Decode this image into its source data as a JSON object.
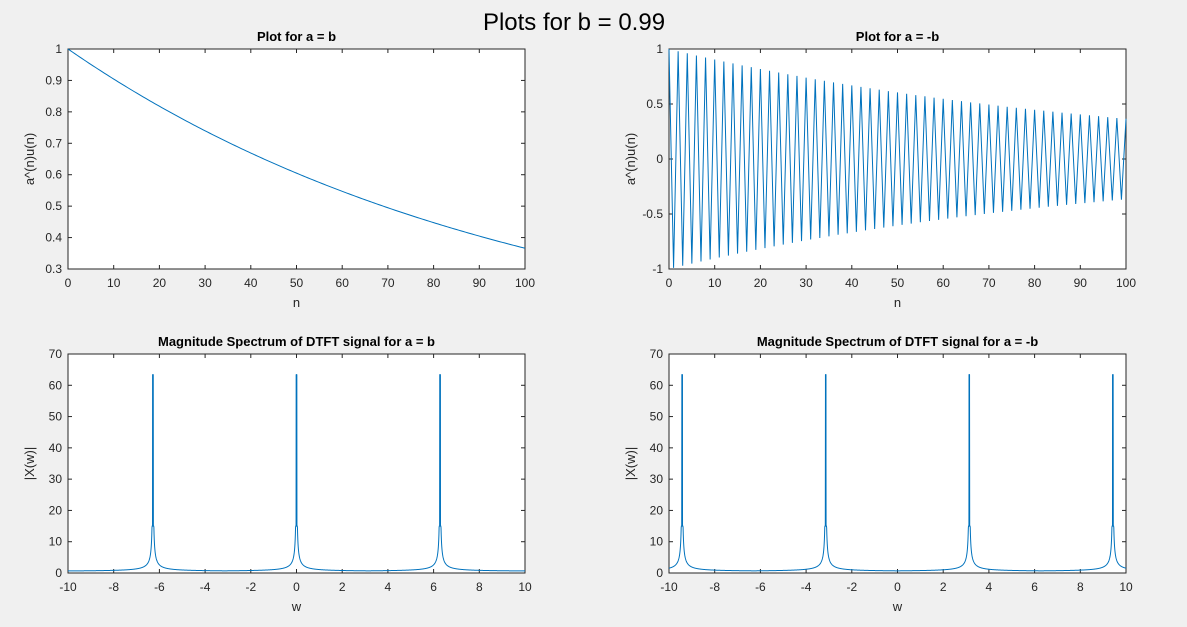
{
  "figure": {
    "suptitle": "Plots for b = 0.99"
  },
  "colors": {
    "line": "#0072BD",
    "axes_bg": "#ffffff",
    "figure_bg": "#f0f0f0",
    "axis": "#262626"
  },
  "chart_data": [
    {
      "type": "line",
      "title": "Plot for a = b",
      "xlabel": "n",
      "ylabel": "a^(n)u(n)",
      "xlim": [
        0,
        100
      ],
      "ylim": [
        0.3,
        1
      ],
      "xticks": [
        0,
        10,
        20,
        30,
        40,
        50,
        60,
        70,
        80,
        90,
        100
      ],
      "yticks": [
        0.3,
        0.4,
        0.5,
        0.6,
        0.7,
        0.8,
        0.9,
        1
      ],
      "xticklabels": [
        "0",
        "10",
        "20",
        "30",
        "40",
        "50",
        "60",
        "70",
        "80",
        "90",
        "100"
      ],
      "yticklabels": [
        "0.3",
        "0.4",
        "0.5",
        "0.6",
        "0.7",
        "0.8",
        "0.9",
        "1"
      ],
      "grid": false,
      "series": [
        {
          "x": [
            0,
            10,
            20,
            30,
            40,
            50,
            60,
            70,
            80,
            90,
            100
          ],
          "y": [
            1.0,
            0.904,
            0.818,
            0.74,
            0.669,
            0.605,
            0.547,
            0.495,
            0.448,
            0.405,
            0.366
          ]
        }
      ]
    },
    {
      "type": "line",
      "title": "Plot for a = -b",
      "xlabel": "n",
      "ylabel": "a^(n)u(n)",
      "xlim": [
        0,
        100
      ],
      "ylim": [
        -1,
        1
      ],
      "xticks": [
        0,
        10,
        20,
        30,
        40,
        50,
        60,
        70,
        80,
        90,
        100
      ],
      "yticks": [
        -1,
        -0.5,
        0,
        0.5,
        1
      ],
      "xticklabels": [
        "0",
        "10",
        "20",
        "30",
        "40",
        "50",
        "60",
        "70",
        "80",
        "90",
        "100"
      ],
      "yticklabels": [
        "-1",
        "-0.5",
        "0",
        "0.5",
        "1"
      ],
      "grid": false,
      "series": [
        {
          "x": [
            0,
            1,
            2,
            3,
            4,
            5,
            6,
            7,
            8,
            9,
            10,
            11,
            12,
            13,
            14,
            15,
            16,
            17,
            18,
            19,
            20,
            21,
            22,
            23,
            24,
            25,
            26,
            27,
            28,
            29,
            30,
            31,
            32,
            33,
            34,
            35,
            36,
            37,
            38,
            39,
            40,
            41,
            42,
            43,
            44,
            45,
            46,
            47,
            48,
            49,
            50,
            51,
            52,
            53,
            54,
            55,
            56,
            57,
            58,
            59,
            60,
            61,
            62,
            63,
            64,
            65,
            66,
            67,
            68,
            69,
            70,
            71,
            72,
            73,
            74,
            75,
            76,
            77,
            78,
            79,
            80,
            81,
            82,
            83,
            84,
            85,
            86,
            87,
            88,
            89,
            90,
            91,
            92,
            93,
            94,
            95,
            96,
            97,
            98,
            99,
            100
          ],
          "y": [
            1.0,
            -0.99,
            0.98,
            -0.97,
            0.961,
            -0.951,
            0.941,
            -0.932,
            0.923,
            -0.914,
            0.904,
            -0.895,
            0.886,
            -0.878,
            0.869,
            -0.86,
            0.851,
            -0.843,
            0.835,
            -0.826,
            0.818,
            -0.81,
            0.802,
            -0.794,
            0.786,
            -0.778,
            0.77,
            -0.762,
            0.755,
            -0.747,
            0.74,
            -0.732,
            0.725,
            -0.718,
            0.711,
            -0.703,
            0.696,
            -0.689,
            0.683,
            -0.676,
            0.669,
            -0.662,
            0.656,
            -0.649,
            0.643,
            -0.636,
            0.63,
            -0.624,
            0.617,
            -0.611,
            0.605,
            -0.599,
            0.593,
            -0.587,
            0.581,
            -0.575,
            0.57,
            -0.564,
            0.558,
            -0.553,
            0.547,
            -0.542,
            0.536,
            -0.531,
            0.526,
            -0.52,
            0.515,
            -0.51,
            0.505,
            -0.5,
            0.495,
            -0.49,
            0.485,
            -0.48,
            0.475,
            -0.471,
            0.466,
            -0.461,
            0.457,
            -0.452,
            0.448,
            -0.443,
            0.439,
            -0.434,
            0.43,
            -0.426,
            0.421,
            -0.417,
            0.413,
            -0.409,
            0.405,
            -0.401,
            0.397,
            -0.393,
            0.389,
            -0.385,
            0.381,
            -0.377,
            0.373,
            -0.37,
            0.366
          ]
        }
      ]
    },
    {
      "type": "line",
      "title": "Magnitude Spectrum of DTFT signal for a = b",
      "xlabel": "w",
      "ylabel": "|X(w)|",
      "xlim": [
        -10,
        10
      ],
      "ylim": [
        0,
        70
      ],
      "xticks": [
        -10,
        -8,
        -6,
        -4,
        -2,
        0,
        2,
        4,
        6,
        8,
        10
      ],
      "yticks": [
        0,
        10,
        20,
        30,
        40,
        50,
        60,
        70
      ],
      "xticklabels": [
        "-10",
        "-8",
        "-6",
        "-4",
        "-2",
        "0",
        "2",
        "4",
        "6",
        "8",
        "10"
      ],
      "yticklabels": [
        "0",
        "10",
        "20",
        "30",
        "40",
        "50",
        "60",
        "70"
      ],
      "grid": false,
      "peaks": {
        "positions": [
          -6.283,
          0,
          6.283
        ],
        "peak_value": 63.4,
        "near_peak_value": 15,
        "baseline_value": 0.5
      }
    },
    {
      "type": "line",
      "title": "Magnitude Spectrum of DTFT signal for a = -b",
      "xlabel": "w",
      "ylabel": "|X(w)|",
      "xlim": [
        -10,
        10
      ],
      "ylim": [
        0,
        70
      ],
      "xticks": [
        -10,
        -8,
        -6,
        -4,
        -2,
        0,
        2,
        4,
        6,
        8,
        10
      ],
      "yticks": [
        0,
        10,
        20,
        30,
        40,
        50,
        60,
        70
      ],
      "xticklabels": [
        "-10",
        "-8",
        "-6",
        "-4",
        "-2",
        "0",
        "2",
        "4",
        "6",
        "8",
        "10"
      ],
      "yticklabels": [
        "0",
        "10",
        "20",
        "30",
        "40",
        "50",
        "60",
        "70"
      ],
      "grid": false,
      "peaks": {
        "positions": [
          -9.425,
          -3.142,
          3.142,
          9.425
        ],
        "peak_value": 63.4,
        "near_peak_value": 15,
        "baseline_value": 0.5
      }
    }
  ]
}
